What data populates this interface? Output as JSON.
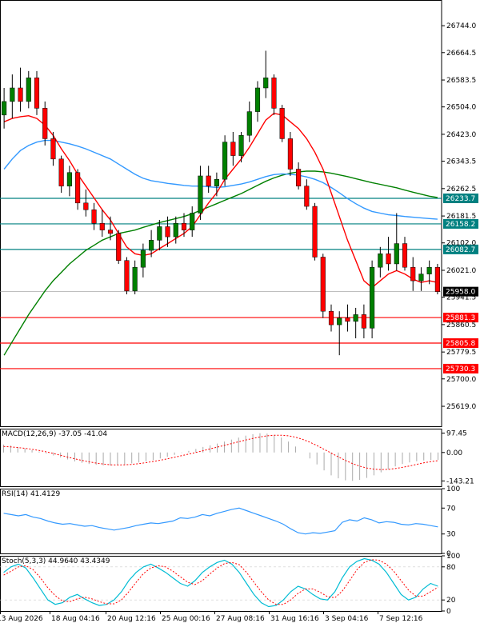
{
  "chart_data": [
    {
      "type": "candlestick",
      "panel": "price",
      "ylim": [
        25560,
        26820
      ],
      "price_ticks": [
        26744.0,
        26664.5,
        26583.5,
        26504.0,
        26423.0,
        26343.5,
        26262.5,
        26181.5,
        26102.0,
        26021.0,
        25941.5,
        25860.5,
        25779.5,
        25700.0,
        25619.0
      ],
      "x_labels": [
        "13 Aug 2026",
        "18 Aug 04:16",
        "20 Aug 12:16",
        "25 Aug 00:16",
        "27 Aug 08:16",
        "31 Aug 16:16",
        "3 Sep 04:16",
        "7 Sep 12:16"
      ],
      "current_price": {
        "value": 25958.0,
        "label": "25958.0"
      },
      "horizontal_levels": [
        {
          "value": 26233.7,
          "label": "26233.7",
          "color": "#008080"
        },
        {
          "value": 26158.2,
          "label": "26158.2",
          "color": "#008080"
        },
        {
          "value": 26082.7,
          "label": "26082.7",
          "color": "#008080"
        },
        {
          "value": 25881.3,
          "label": "25881.3",
          "color": "#ff0000"
        },
        {
          "value": 25805.8,
          "label": "25805.8",
          "color": "#ff0000"
        },
        {
          "value": 25730.3,
          "label": "25730.3",
          "color": "#ff0000"
        }
      ],
      "candles": [
        {
          "o": 26480,
          "h": 26560,
          "l": 26440,
          "c": 26520
        },
        {
          "o": 26520,
          "h": 26600,
          "l": 26470,
          "c": 26560
        },
        {
          "o": 26560,
          "h": 26620,
          "l": 26490,
          "c": 26520
        },
        {
          "o": 26520,
          "h": 26610,
          "l": 26500,
          "c": 26590
        },
        {
          "o": 26590,
          "h": 26610,
          "l": 26480,
          "c": 26500
        },
        {
          "o": 26500,
          "h": 26520,
          "l": 26390,
          "c": 26410
        },
        {
          "o": 26410,
          "h": 26430,
          "l": 26330,
          "c": 26350
        },
        {
          "o": 26350,
          "h": 26360,
          "l": 26250,
          "c": 26270
        },
        {
          "o": 26270,
          "h": 26330,
          "l": 26240,
          "c": 26310
        },
        {
          "o": 26310,
          "h": 26320,
          "l": 26200,
          "c": 26220
        },
        {
          "o": 26220,
          "h": 26260,
          "l": 26180,
          "c": 26200
        },
        {
          "o": 26200,
          "h": 26220,
          "l": 26140,
          "c": 26160
        },
        {
          "o": 26160,
          "h": 26200,
          "l": 26120,
          "c": 26140
        },
        {
          "o": 26140,
          "h": 26180,
          "l": 26110,
          "c": 26130
        },
        {
          "o": 26130,
          "h": 26140,
          "l": 26040,
          "c": 26050
        },
        {
          "o": 26050,
          "h": 26060,
          "l": 25950,
          "c": 25960
        },
        {
          "o": 25960,
          "h": 26050,
          "l": 25950,
          "c": 26030
        },
        {
          "o": 26030,
          "h": 26100,
          "l": 26000,
          "c": 26080
        },
        {
          "o": 26080,
          "h": 26140,
          "l": 26060,
          "c": 26110
        },
        {
          "o": 26110,
          "h": 26170,
          "l": 26080,
          "c": 26150
        },
        {
          "o": 26150,
          "h": 26180,
          "l": 26090,
          "c": 26120
        },
        {
          "o": 26120,
          "h": 26180,
          "l": 26100,
          "c": 26160
        },
        {
          "o": 26160,
          "h": 26190,
          "l": 26120,
          "c": 26140
        },
        {
          "o": 26140,
          "h": 26210,
          "l": 26120,
          "c": 26190
        },
        {
          "o": 26190,
          "h": 26330,
          "l": 26170,
          "c": 26300
        },
        {
          "o": 26300,
          "h": 26330,
          "l": 26250,
          "c": 26270
        },
        {
          "o": 26270,
          "h": 26310,
          "l": 26240,
          "c": 26290
        },
        {
          "o": 26290,
          "h": 26420,
          "l": 26270,
          "c": 26400
        },
        {
          "o": 26400,
          "h": 26430,
          "l": 26330,
          "c": 26360
        },
        {
          "o": 26360,
          "h": 26430,
          "l": 26340,
          "c": 26420
        },
        {
          "o": 26420,
          "h": 26520,
          "l": 26400,
          "c": 26490
        },
        {
          "o": 26490,
          "h": 26580,
          "l": 26460,
          "c": 26560
        },
        {
          "o": 26560,
          "h": 26670,
          "l": 26530,
          "c": 26590
        },
        {
          "o": 26590,
          "h": 26600,
          "l": 26480,
          "c": 26500
        },
        {
          "o": 26500,
          "h": 26510,
          "l": 26400,
          "c": 26410
        },
        {
          "o": 26410,
          "h": 26430,
          "l": 26300,
          "c": 26320
        },
        {
          "o": 26320,
          "h": 26340,
          "l": 26260,
          "c": 26270
        },
        {
          "o": 26270,
          "h": 26290,
          "l": 26200,
          "c": 26210
        },
        {
          "o": 26210,
          "h": 26220,
          "l": 26050,
          "c": 26060
        },
        {
          "o": 26060,
          "h": 26070,
          "l": 25880,
          "c": 25900
        },
        {
          "o": 25900,
          "h": 25920,
          "l": 25840,
          "c": 25860
        },
        {
          "o": 25860,
          "h": 25900,
          "l": 25770,
          "c": 25880
        },
        {
          "o": 25880,
          "h": 25920,
          "l": 25840,
          "c": 25870
        },
        {
          "o": 25870,
          "h": 25910,
          "l": 25820,
          "c": 25890
        },
        {
          "o": 25890,
          "h": 25920,
          "l": 25820,
          "c": 25850
        },
        {
          "o": 25850,
          "h": 26050,
          "l": 25820,
          "c": 26030
        },
        {
          "o": 26030,
          "h": 26090,
          "l": 26000,
          "c": 26070
        },
        {
          "o": 26070,
          "h": 26120,
          "l": 26020,
          "c": 26040
        },
        {
          "o": 26040,
          "h": 26190,
          "l": 26020,
          "c": 26100
        },
        {
          "o": 26100,
          "h": 26120,
          "l": 26020,
          "c": 26030
        },
        {
          "o": 26030,
          "h": 26060,
          "l": 25960,
          "c": 25990
        },
        {
          "o": 25990,
          "h": 26030,
          "l": 25960,
          "c": 26010
        },
        {
          "o": 26010,
          "h": 26050,
          "l": 25980,
          "c": 26030
        },
        {
          "o": 26030,
          "h": 26040,
          "l": 25950,
          "c": 25958
        }
      ],
      "ma_fast": {
        "color": "#ff0000",
        "values": [
          26460,
          26470,
          26475,
          26478,
          26470,
          26450,
          26420,
          26380,
          26345,
          26305,
          26270,
          26235,
          26200,
          26170,
          26130,
          26090,
          26070,
          26065,
          26070,
          26085,
          26100,
          26115,
          26130,
          26150,
          26185,
          26220,
          26250,
          26290,
          26320,
          26350,
          26385,
          26425,
          26465,
          26485,
          26480,
          26460,
          26440,
          26410,
          26370,
          26320,
          26250,
          26180,
          26110,
          26050,
          25990,
          25970,
          25990,
          26010,
          26020,
          26010,
          25995,
          25985,
          25990,
          25985
        ]
      },
      "ma_mid": {
        "color": "#3399ff",
        "values": [
          26320,
          26350,
          26375,
          26390,
          26400,
          26405,
          26405,
          26400,
          26395,
          26388,
          26380,
          26370,
          26360,
          26350,
          26335,
          26320,
          26305,
          26293,
          26286,
          26282,
          26278,
          26275,
          26272,
          26270,
          26270,
          26268,
          26266,
          26268,
          26272,
          26276,
          26282,
          26290,
          26298,
          26304,
          26306,
          26305,
          26302,
          26297,
          26290,
          26280,
          26266,
          26250,
          26233,
          26218,
          26205,
          26195,
          26190,
          26185,
          26183,
          26180,
          26178,
          26176,
          26174,
          26172
        ]
      },
      "ma_slow": {
        "color": "#008000",
        "values": [
          25770,
          25810,
          25850,
          25890,
          25925,
          25960,
          25990,
          26015,
          26040,
          26060,
          26080,
          26095,
          26110,
          26120,
          26130,
          26135,
          26140,
          26148,
          26155,
          26162,
          26168,
          26174,
          26180,
          26188,
          26198,
          26208,
          26218,
          26228,
          26238,
          26248,
          26260,
          26272,
          26284,
          26294,
          26302,
          26308,
          26312,
          26314,
          26314,
          26312,
          26308,
          26303,
          26298,
          26292,
          26286,
          26280,
          26275,
          26270,
          26265,
          26258,
          26252,
          26246,
          26240,
          26236
        ]
      }
    },
    {
      "type": "macd",
      "label": "MACD(12,26,9) -37.05 -41.04",
      "ylim": [
        -170,
        120
      ],
      "ticks": [
        "97.45",
        "0.00",
        "-143.21"
      ],
      "histogram": [
        40,
        35,
        28,
        20,
        12,
        5,
        -5,
        -15,
        -25,
        -35,
        -45,
        -52,
        -58,
        -62,
        -65,
        -66,
        -64,
        -60,
        -55,
        -50,
        -44,
        -38,
        -30,
        -22,
        -12,
        -2,
        8,
        18,
        28,
        36,
        45,
        55,
        65,
        75,
        85,
        92,
        97,
        95,
        88,
        75,
        55,
        30,
        0,
        -30,
        -60,
        -90,
        -115,
        -130,
        -140,
        -143,
        -138,
        -128,
        -115,
        -100,
        -85,
        -70,
        -58,
        -50,
        -44,
        -40,
        -38,
        -37
      ],
      "signal": [
        30,
        28,
        25,
        21,
        16,
        10,
        3,
        -5,
        -14,
        -23,
        -32,
        -40,
        -47,
        -53,
        -58,
        -62,
        -63,
        -62,
        -60,
        -56,
        -51,
        -45,
        -39,
        -32,
        -24,
        -16,
        -8,
        0,
        9,
        18,
        27,
        36,
        45,
        54,
        63,
        71,
        78,
        84,
        87,
        87,
        84,
        77,
        66,
        52,
        35,
        16,
        -3,
        -22,
        -40,
        -56,
        -69,
        -78,
        -84,
        -86,
        -85,
        -81,
        -75,
        -68,
        -60,
        -52,
        -46,
        -41
      ]
    },
    {
      "type": "line",
      "panel": "rsi",
      "label": "RSI(14) 41.4129",
      "ylim": [
        0,
        100
      ],
      "ticks": [
        "100",
        "70",
        "30",
        "0"
      ],
      "values": [
        62,
        60,
        58,
        60,
        56,
        54,
        50,
        47,
        45,
        46,
        44,
        42,
        43,
        40,
        38,
        36,
        38,
        40,
        43,
        45,
        47,
        46,
        48,
        50,
        55,
        54,
        56,
        60,
        58,
        62,
        65,
        68,
        70,
        66,
        62,
        58,
        54,
        50,
        45,
        38,
        32,
        30,
        32,
        31,
        33,
        35,
        48,
        52,
        50,
        55,
        52,
        47,
        49,
        48,
        45,
        44,
        46,
        45,
        43,
        41
      ]
    },
    {
      "type": "stochastic",
      "panel": "stoch",
      "label": "Stoch(5,3,3) 44.9640 43.4349",
      "ylim": [
        0,
        100
      ],
      "ticks": [
        "100",
        "80",
        "20",
        "0"
      ],
      "k": [
        70,
        80,
        85,
        78,
        60,
        40,
        20,
        12,
        15,
        25,
        30,
        22,
        15,
        10,
        12,
        20,
        35,
        55,
        70,
        80,
        85,
        78,
        70,
        60,
        50,
        45,
        55,
        70,
        80,
        88,
        92,
        85,
        70,
        50,
        30,
        15,
        8,
        10,
        20,
        35,
        45,
        40,
        30,
        22,
        20,
        35,
        60,
        80,
        90,
        95,
        92,
        85,
        70,
        50,
        30,
        20,
        25,
        40,
        50,
        45
      ],
      "d": [
        65,
        72,
        80,
        82,
        75,
        60,
        42,
        28,
        18,
        17,
        22,
        25,
        22,
        17,
        13,
        13,
        20,
        35,
        52,
        68,
        78,
        82,
        80,
        72,
        62,
        52,
        48,
        55,
        67,
        78,
        86,
        88,
        84,
        70,
        52,
        35,
        20,
        12,
        12,
        20,
        32,
        40,
        40,
        34,
        26,
        24,
        36,
        55,
        75,
        88,
        93,
        92,
        85,
        72,
        55,
        38,
        27,
        27,
        35,
        43
      ]
    }
  ]
}
